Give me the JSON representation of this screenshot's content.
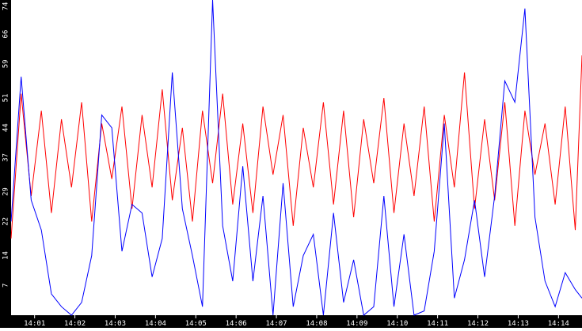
{
  "colors": {
    "background": "#ffffff",
    "axis_bar": "#000000",
    "tick_label": "#ffffff",
    "series_a": "#ff0000",
    "series_b": "#0000ff"
  },
  "chart_data": {
    "type": "line",
    "title": "",
    "xlabel": "",
    "ylabel": "",
    "grid": false,
    "legend": "none",
    "ylim": [
      0,
      74
    ],
    "y_ticks": [
      7,
      14,
      22,
      29,
      37,
      44,
      51,
      59,
      66,
      74
    ],
    "x_ticks": [
      "14:01",
      "14:02",
      "14:03",
      "14:04",
      "14:05",
      "14:06",
      "14:07",
      "14:08",
      "14:09",
      "14:10",
      "14:11",
      "14:12",
      "14:13",
      "14:14"
    ],
    "x_range": [
      "14:00:25",
      "14:14:35"
    ],
    "x": [
      "14:00:25",
      "14:00:40",
      "14:00:55",
      "14:01:10",
      "14:01:25",
      "14:01:40",
      "14:01:55",
      "14:02:10",
      "14:02:25",
      "14:02:40",
      "14:02:55",
      "14:03:10",
      "14:03:25",
      "14:03:40",
      "14:03:55",
      "14:04:10",
      "14:04:25",
      "14:04:40",
      "14:04:55",
      "14:05:10",
      "14:05:25",
      "14:05:40",
      "14:05:55",
      "14:06:10",
      "14:06:25",
      "14:06:40",
      "14:06:55",
      "14:07:10",
      "14:07:25",
      "14:07:40",
      "14:07:55",
      "14:08:10",
      "14:08:25",
      "14:08:40",
      "14:08:55",
      "14:09:10",
      "14:09:25",
      "14:09:40",
      "14:09:55",
      "14:10:10",
      "14:10:25",
      "14:10:40",
      "14:10:55",
      "14:11:10",
      "14:11:25",
      "14:11:40",
      "14:11:55",
      "14:12:10",
      "14:12:25",
      "14:12:40",
      "14:12:55",
      "14:13:10",
      "14:13:25",
      "14:13:40",
      "14:13:55",
      "14:14:10",
      "14:14:25",
      "14:14:35"
    ],
    "series": [
      {
        "color": "#ff0000",
        "values": [
          18,
          52,
          28,
          48,
          24,
          46,
          30,
          50,
          22,
          45,
          32,
          49,
          25,
          47,
          30,
          53,
          27,
          44,
          22,
          48,
          31,
          52,
          26,
          45,
          24,
          49,
          33,
          47,
          21,
          44,
          30,
          50,
          26,
          48,
          23,
          46,
          31,
          51,
          24,
          45,
          28,
          49,
          22,
          47,
          30,
          57,
          25,
          46,
          27,
          50,
          21,
          48,
          33,
          45,
          26,
          49,
          20,
          61
        ]
      },
      {
        "color": "#0000ff",
        "values": [
          22,
          56,
          27,
          20,
          5,
          2,
          0,
          3,
          14,
          47,
          44,
          15,
          26,
          24,
          9,
          18,
          57,
          25,
          14,
          2,
          74,
          21,
          8,
          35,
          8,
          28,
          0,
          31,
          2,
          14,
          19,
          0,
          24,
          3,
          13,
          0,
          2,
          28,
          2,
          19,
          0,
          1,
          15,
          45,
          4,
          13,
          27,
          9,
          28,
          55,
          50,
          72,
          23,
          8,
          2,
          10,
          6,
          4
        ]
      }
    ]
  }
}
